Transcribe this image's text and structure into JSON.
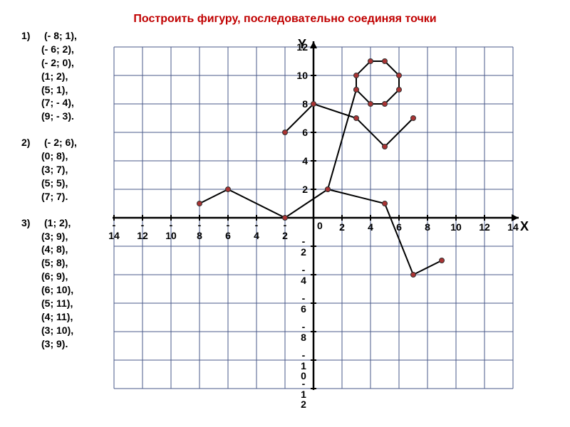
{
  "title": "Построить фигуру, последовательно соединяя точки",
  "groups": [
    {
      "num": "1)",
      "pts": [
        "(- 8; 1),",
        "(- 6; 2),",
        "(- 2; 0),",
        "(1; 2),",
        "(5; 1),",
        "(7; - 4),",
        "(9; - 3)."
      ]
    },
    {
      "num": "2)",
      "pts": [
        "(- 2; 6),",
        "(0; 8),",
        "(3; 7),",
        "(5; 5),",
        "(7; 7)."
      ]
    },
    {
      "num": "3)",
      "pts": [
        "(1; 2),",
        "(3; 9),",
        "(4; 8),",
        "(5; 8),",
        "(6; 9),",
        "(6; 10),",
        "(5; 11),",
        "(4; 11),",
        "(3; 10),",
        "(3; 9)."
      ]
    }
  ],
  "chart": {
    "xlim": [
      -14,
      14
    ],
    "ylim": [
      -12,
      12
    ],
    "xtick_step": 2,
    "ytick_step": 2,
    "x_label": "X",
    "y_label": "Y",
    "grid_color": "#4a5a8a",
    "grid_width": 1,
    "axis_color": "#000000",
    "axis_width": 2.5,
    "tick_font_size": 14,
    "tick_font_weight": "bold",
    "point_color": "#aa3333",
    "point_border": "#333333",
    "point_radius": 3.5,
    "line_color": "#000000",
    "line_width": 2,
    "background": "#ffffff",
    "x_tick_labels": [
      -14,
      -12,
      -10,
      -8,
      -6,
      -4,
      -2,
      0,
      2,
      4,
      6,
      8,
      10,
      12,
      14
    ],
    "y_tick_labels_pos": [
      2,
      4,
      6,
      8,
      10,
      12
    ],
    "y_tick_labels_neg": [
      -2,
      -4,
      -6,
      -8,
      -10,
      -12
    ],
    "paths": [
      [
        [
          -8,
          1
        ],
        [
          -6,
          2
        ],
        [
          -2,
          0
        ],
        [
          1,
          2
        ],
        [
          5,
          1
        ],
        [
          7,
          -4
        ],
        [
          9,
          -3
        ]
      ],
      [
        [
          -2,
          6
        ],
        [
          0,
          8
        ],
        [
          3,
          7
        ],
        [
          5,
          5
        ],
        [
          7,
          7
        ]
      ],
      [
        [
          1,
          2
        ],
        [
          3,
          9
        ],
        [
          4,
          8
        ],
        [
          5,
          8
        ],
        [
          6,
          9
        ],
        [
          6,
          10
        ],
        [
          5,
          11
        ],
        [
          4,
          11
        ],
        [
          3,
          10
        ],
        [
          3,
          9
        ]
      ]
    ]
  }
}
